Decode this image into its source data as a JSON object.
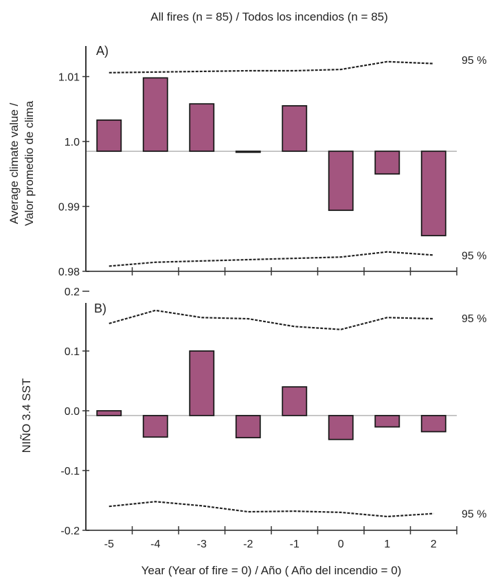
{
  "chart_data": [
    {
      "type": "bar",
      "panel_label": "A)",
      "title": "All fires (n = 85) / Todos los incendios (n = 85)",
      "ylabel_line1": "Average climate value /",
      "ylabel_line2": "Valor promedio de clima",
      "xlabel": "Year (Year of fire = 0) / Año ( Año del incendio = 0)",
      "categories": [
        "-5",
        "-4",
        "-3",
        "-2",
        "-1",
        "0",
        "1",
        "2"
      ],
      "baseline": 0.9985,
      "values": [
        1.0033,
        1.0098,
        1.0058,
        0.9985,
        1.0055,
        0.9894,
        0.995,
        0.9855
      ],
      "ylim": [
        0.98,
        1.013
      ],
      "yticks": [
        {
          "value": 1.01,
          "label": "1.01"
        },
        {
          "value": 1.0,
          "label": "1.0"
        },
        {
          "value": 0.99,
          "label": "0.99"
        },
        {
          "value": 0.98,
          "label": "0.98"
        }
      ],
      "ci_upper": [
        1.0106,
        1.0107,
        1.0108,
        1.0109,
        1.0109,
        1.0111,
        1.0123,
        1.012
      ],
      "ci_lower": [
        0.9808,
        0.9814,
        0.9816,
        0.9818,
        0.982,
        0.9822,
        0.983,
        0.9825
      ],
      "ci_upper_label": "95 %",
      "ci_lower_label": "95 %",
      "bar_color": "#a3557f",
      "grid": false
    },
    {
      "type": "bar",
      "panel_label": "B)",
      "ylabel": "NIÑO 3.4 SST",
      "xlabel": "Year (Year of fire = 0) / Año ( Año del incendio = 0)",
      "categories": [
        "-5",
        "-4",
        "-3",
        "-2",
        "-1",
        "0",
        "1",
        "2"
      ],
      "baseline": -0.008,
      "values": [
        0.0,
        -0.044,
        0.1,
        -0.045,
        0.04,
        -0.048,
        -0.027,
        -0.035
      ],
      "ylim": [
        -0.2,
        0.2
      ],
      "yticks": [
        {
          "value": 0.2,
          "label": "0.2"
        },
        {
          "value": 0.1,
          "label": "0.1"
        },
        {
          "value": 0.0,
          "label": "0.0"
        },
        {
          "value": -0.1,
          "label": "-0.1"
        },
        {
          "value": -0.2,
          "label": "-0.2"
        }
      ],
      "ci_upper": [
        0.146,
        0.168,
        0.156,
        0.154,
        0.141,
        0.136,
        0.156,
        0.154
      ],
      "ci_lower": [
        -0.16,
        -0.152,
        -0.159,
        -0.169,
        -0.168,
        -0.17,
        -0.177,
        -0.172
      ],
      "ci_upper_label": "95 %",
      "ci_lower_label": "95 %",
      "bar_color": "#a3557f",
      "grid": false
    }
  ]
}
